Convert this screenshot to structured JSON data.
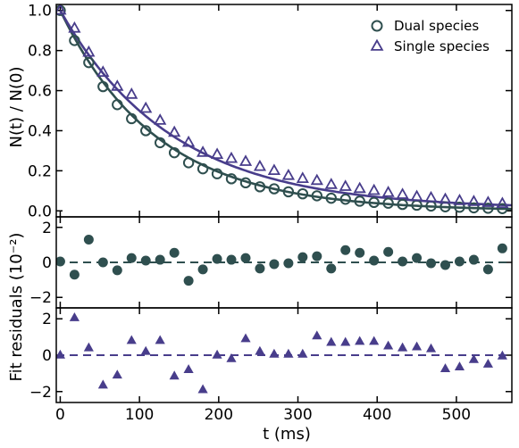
{
  "chart_data": {
    "type": "scatter",
    "xlabel": "t (ms)",
    "x_ticks": [
      0,
      100,
      200,
      300,
      400,
      500
    ],
    "xlim": [
      -5,
      570
    ],
    "colors": {
      "dual": "#2f4f4f",
      "single": "#483d8b"
    },
    "panels": [
      {
        "id": "main",
        "ylabel": "N(t) / N(0)",
        "ylim": [
          -0.03,
          1.03
        ],
        "y_ticks": [
          "0.0",
          "0.2",
          "0.4",
          "0.6",
          "0.8",
          "1.0"
        ],
        "legend": {
          "position": "top-right",
          "entries": [
            "Dual species",
            "Single species"
          ]
        },
        "series": [
          {
            "name": "Dual species",
            "marker": "open-circle",
            "x": [
              0,
              18,
              36,
              54,
              72,
              90,
              108,
              126,
              144,
              162,
              180,
              198,
              216,
              234,
              252,
              270,
              288,
              306,
              324,
              342,
              360,
              378,
              396,
              414,
              432,
              450,
              468,
              486,
              504,
              522,
              540,
              558
            ],
            "y": [
              1.0,
              0.85,
              0.74,
              0.62,
              0.53,
              0.46,
              0.4,
              0.34,
              0.29,
              0.24,
              0.21,
              0.185,
              0.16,
              0.14,
              0.12,
              0.11,
              0.095,
              0.085,
              0.075,
              0.063,
              0.058,
              0.048,
              0.042,
              0.038,
              0.032,
              0.028,
              0.024,
              0.02,
              0.018,
              0.015,
              0.013,
              0.011
            ]
          },
          {
            "name": "Single species",
            "marker": "open-triangle",
            "x": [
              0,
              18,
              36,
              54,
              72,
              90,
              108,
              126,
              144,
              162,
              180,
              198,
              216,
              234,
              252,
              270,
              288,
              306,
              324,
              342,
              360,
              378,
              396,
              414,
              432,
              450,
              468,
              486,
              504,
              522,
              540,
              558
            ],
            "y": [
              1.0,
              0.91,
              0.79,
              0.69,
              0.62,
              0.58,
              0.51,
              0.45,
              0.39,
              0.34,
              0.29,
              0.28,
              0.26,
              0.245,
              0.22,
              0.2,
              0.175,
              0.16,
              0.15,
              0.13,
              0.12,
              0.11,
              0.1,
              0.09,
              0.08,
              0.07,
              0.064,
              0.056,
              0.05,
              0.045,
              0.04,
              0.035
            ]
          }
        ],
        "fits": [
          {
            "series": "Dual species",
            "a": 1.0,
            "tau": 122,
            "c": 0.0
          },
          {
            "series": "Single species",
            "a": 0.99,
            "tau": 142,
            "c": 0.01
          }
        ]
      },
      {
        "id": "residuals-dual",
        "ylim": [
          -2.6,
          2.6
        ],
        "y_ticks": [
          "−2",
          "0",
          "2"
        ],
        "series": [
          {
            "name": "Dual species",
            "marker": "filled-circle",
            "x": [
              0,
              18,
              36,
              54,
              72,
              90,
              108,
              126,
              144,
              162,
              180,
              198,
              216,
              234,
              252,
              270,
              288,
              306,
              324,
              342,
              360,
              378,
              396,
              414,
              432,
              450,
              468,
              486,
              504,
              522,
              540,
              558
            ],
            "y": [
              0.05,
              -0.7,
              1.3,
              0.0,
              -0.45,
              0.25,
              0.1,
              0.15,
              0.55,
              -1.05,
              -0.4,
              0.2,
              0.15,
              0.25,
              -0.35,
              -0.1,
              -0.05,
              0.3,
              0.35,
              -0.35,
              0.7,
              0.55,
              0.1,
              0.6,
              0.05,
              0.25,
              -0.05,
              -0.15,
              0.05,
              0.15,
              -0.4,
              0.8
            ]
          }
        ]
      },
      {
        "id": "residuals-single",
        "ylim": [
          -2.6,
          2.6
        ],
        "y_ticks": [
          "−2",
          "0",
          "2"
        ],
        "series": [
          {
            "name": "Single species",
            "marker": "filled-triangle",
            "x": [
              0,
              18,
              36,
              54,
              72,
              90,
              108,
              126,
              144,
              162,
              180,
              198,
              216,
              234,
              252,
              270,
              288,
              306,
              324,
              342,
              360,
              378,
              396,
              414,
              432,
              450,
              468,
              486,
              504,
              522,
              540,
              558
            ],
            "y": [
              0.0,
              2.05,
              0.4,
              -1.65,
              -1.1,
              0.8,
              0.2,
              0.8,
              -1.15,
              -0.8,
              -1.9,
              0.0,
              -0.2,
              0.9,
              0.2,
              0.05,
              0.05,
              0.05,
              1.05,
              0.7,
              0.7,
              0.75,
              0.75,
              0.5,
              0.4,
              0.45,
              0.35,
              -0.75,
              -0.65,
              -0.25,
              -0.5,
              -0.05
            ]
          }
        ]
      }
    ],
    "shared_ylabel": "Fit residuals (10⁻²)"
  }
}
